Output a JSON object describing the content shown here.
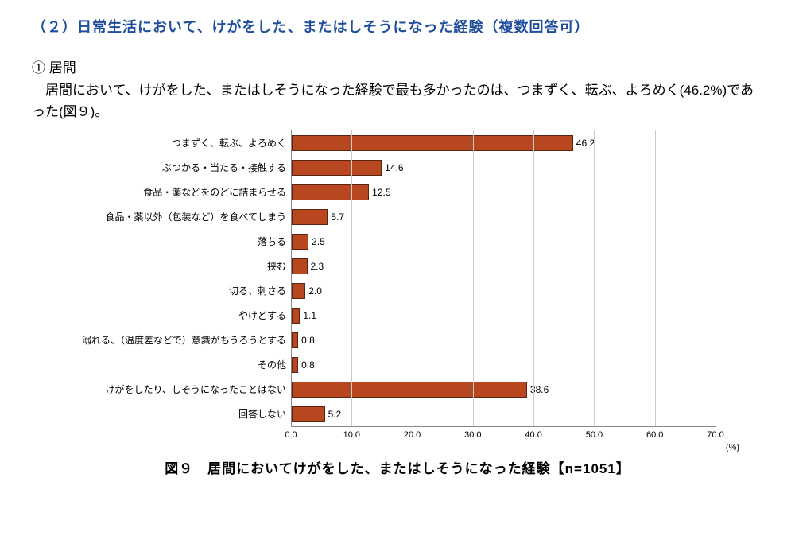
{
  "heading": "（２）日常生活において、けがをした、またはしそうになった経験（複数回答可）",
  "sub_num": "① 居間",
  "body": "居間において、けがをした、またはしそうになった経験で最も多かったのは、つまずく、転ぶ、よろめく(46.2%)であった(図９)。",
  "caption": "図９　居間においてけがをした、またはしそうになった経験【n=1051】",
  "chart": {
    "type": "bar",
    "xmax": 70.0,
    "xtick_step": 10.0,
    "xticks": [
      "0.0",
      "10.0",
      "20.0",
      "30.0",
      "40.0",
      "50.0",
      "60.0",
      "70.0"
    ],
    "unit": "(%)",
    "bar_color": "#b8471f",
    "bar_border": "#5a2410",
    "grid_color": "#cccccc",
    "axis_color": "#888888",
    "label_fontsize": 12,
    "value_fontsize": 12,
    "categories": [
      {
        "label": "つまずく、転ぶ、よろめく",
        "value": 46.2
      },
      {
        "label": "ぶつかる・当たる・接触する",
        "value": 14.6
      },
      {
        "label": "食品・薬などをのどに詰まらせる",
        "value": 12.5
      },
      {
        "label": "食品・薬以外（包装など）を食べてしまう",
        "value": 5.7
      },
      {
        "label": "落ちる",
        "value": 2.5
      },
      {
        "label": "挟む",
        "value": 2.3
      },
      {
        "label": "切る、刺さる",
        "value": 2.0
      },
      {
        "label": "やけどする",
        "value": 1.1
      },
      {
        "label": "溺れる、（温度差などで）意識がもうろうとする",
        "value": 0.8
      },
      {
        "label": "その他",
        "value": 0.8
      },
      {
        "label": "けがをしたり、しそうになったことはない",
        "value": 38.6
      },
      {
        "label": "回答しない",
        "value": 5.2
      }
    ]
  },
  "heading_color": "#1f4e9c"
}
